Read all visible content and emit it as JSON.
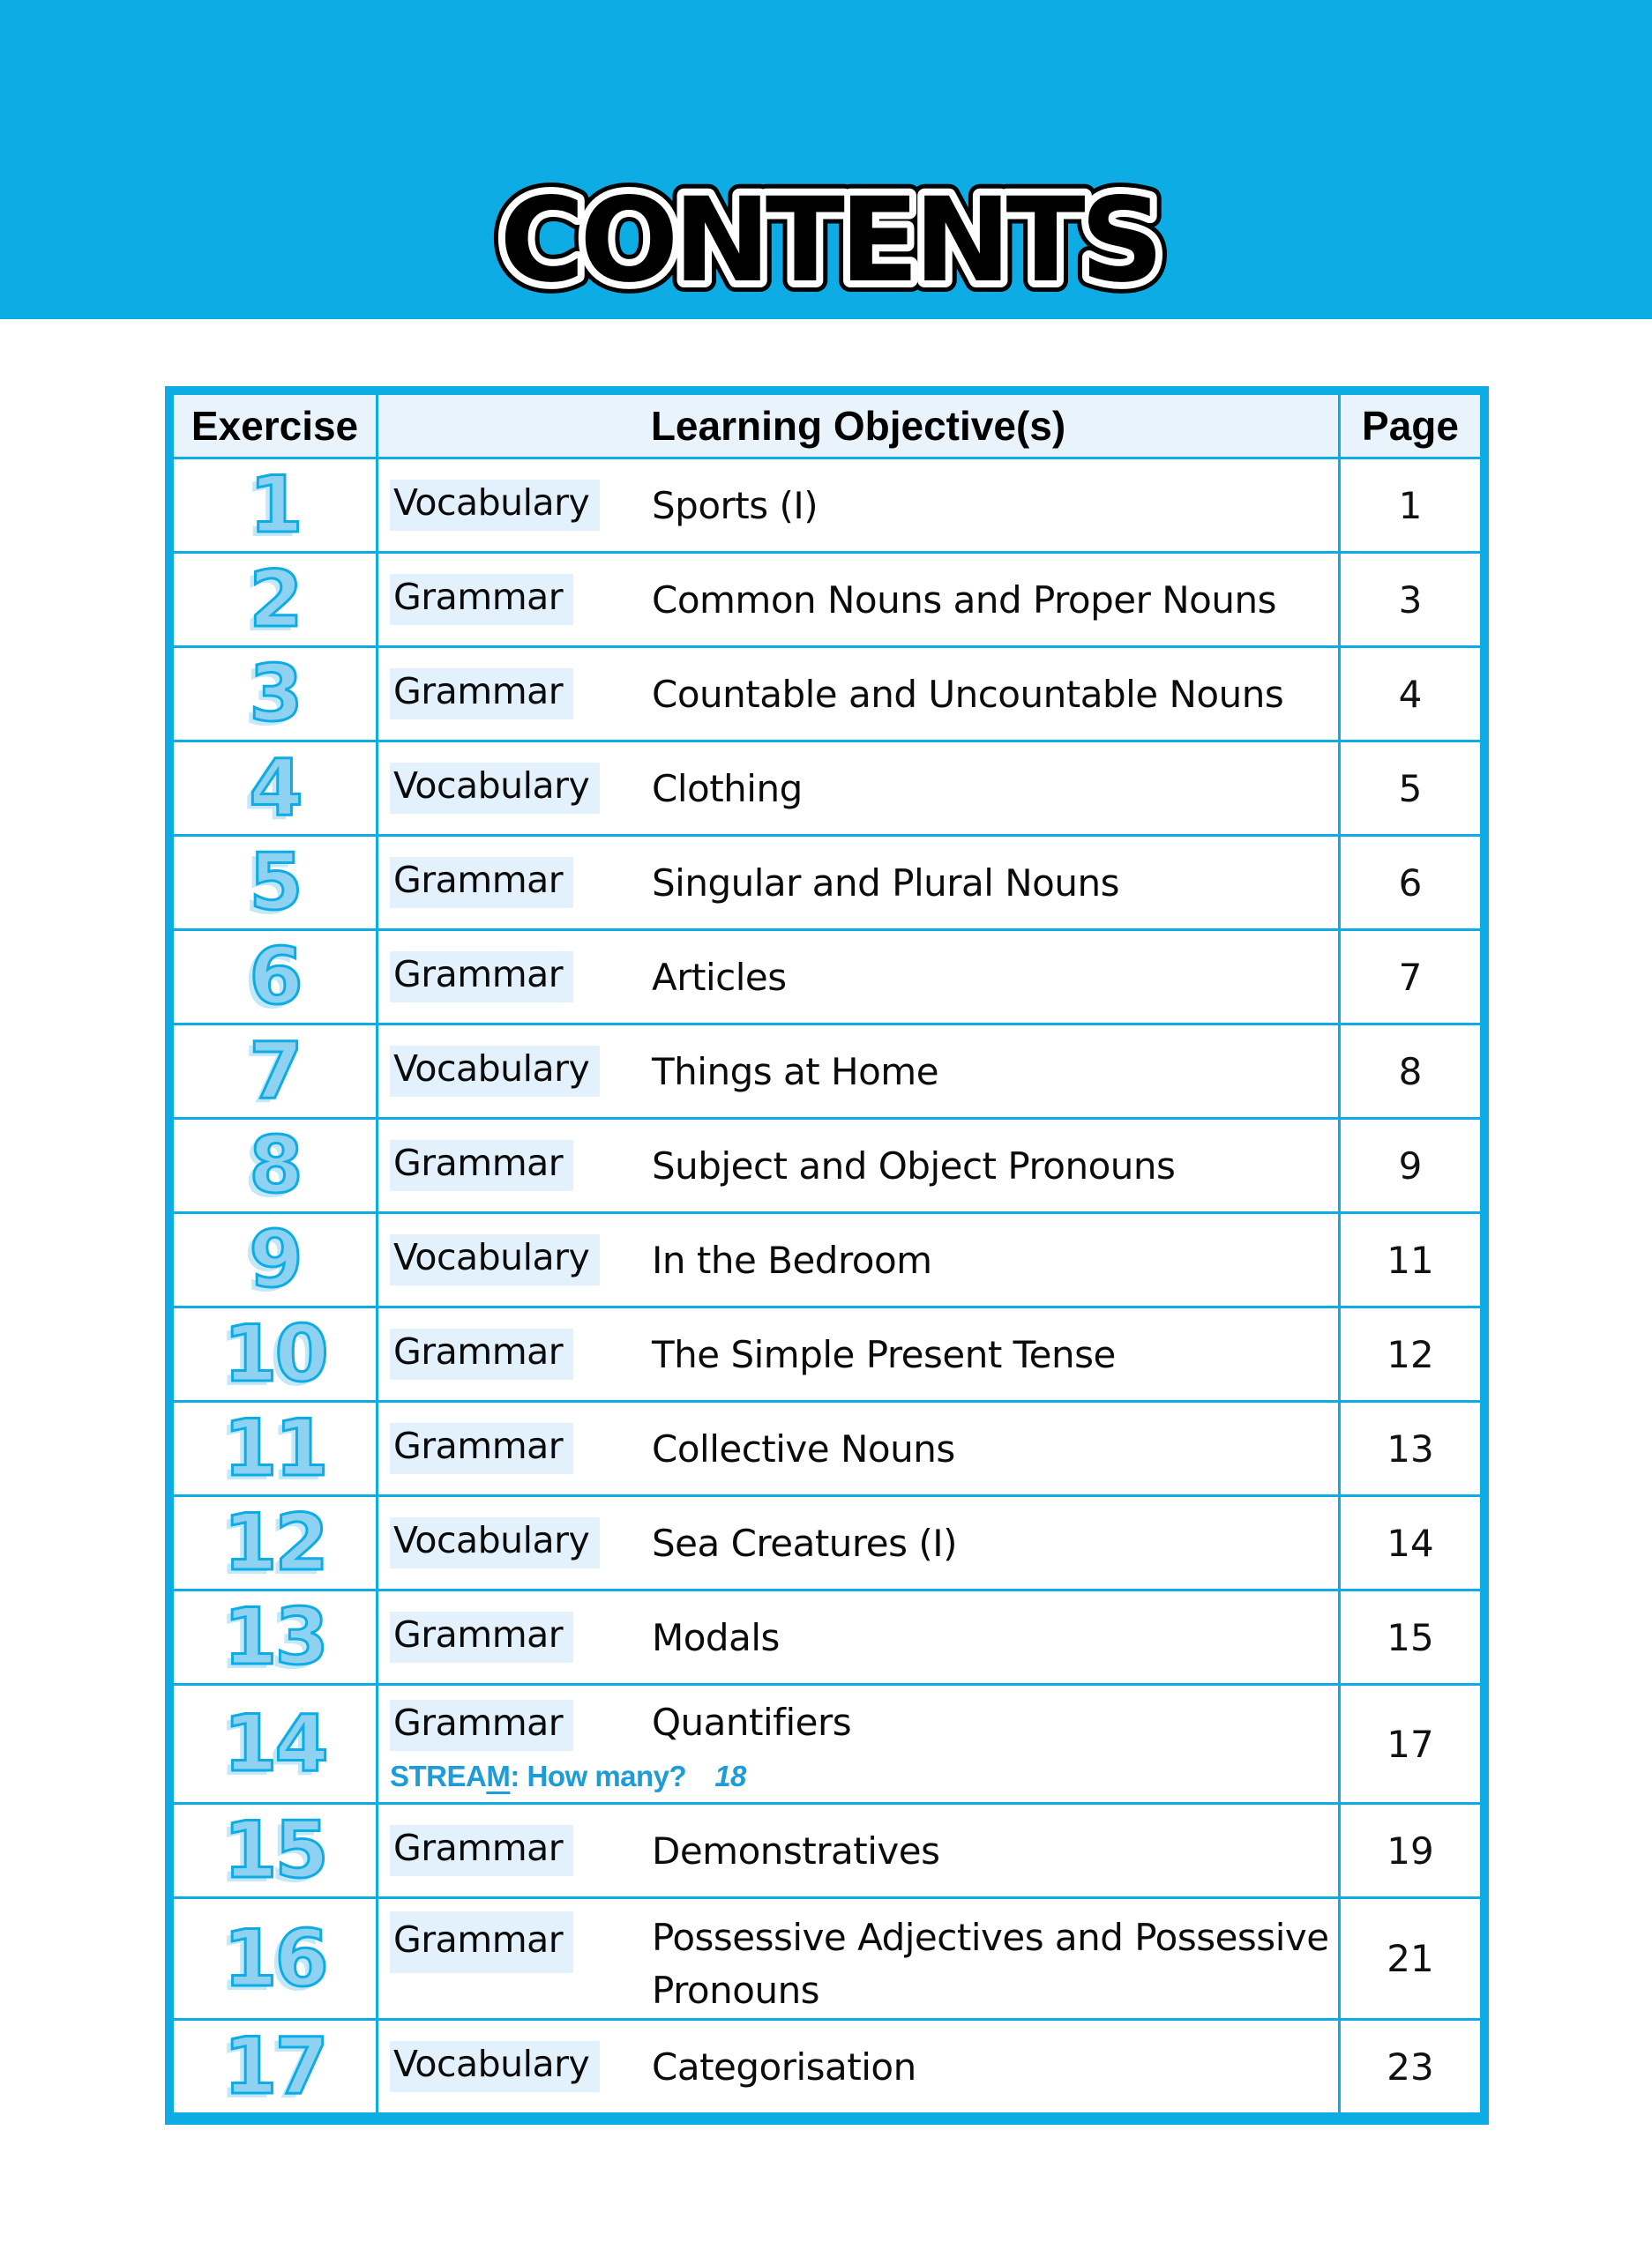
{
  "banner": {
    "title": "CONTENTS"
  },
  "table": {
    "headers": {
      "exercise": "Exercise",
      "objective": "Learning Objective(s)",
      "page": "Page"
    },
    "rows": [
      {
        "num": "1",
        "category": "Vocabulary",
        "objective": "Sports (I)",
        "page": "1"
      },
      {
        "num": "2",
        "category": "Grammar",
        "objective": "Common Nouns and Proper Nouns",
        "page": "3"
      },
      {
        "num": "3",
        "category": "Grammar",
        "objective": "Countable and Uncountable Nouns",
        "page": "4"
      },
      {
        "num": "4",
        "category": "Vocabulary",
        "objective": "Clothing",
        "page": "5"
      },
      {
        "num": "5",
        "category": "Grammar",
        "objective": "Singular and Plural Nouns",
        "page": "6"
      },
      {
        "num": "6",
        "category": "Grammar",
        "objective": "Articles",
        "page": "7"
      },
      {
        "num": "7",
        "category": "Vocabulary",
        "objective": "Things at Home",
        "page": "8"
      },
      {
        "num": "8",
        "category": "Grammar",
        "objective": "Subject and Object Pronouns",
        "page": "9"
      },
      {
        "num": "9",
        "category": "Vocabulary",
        "objective": "In the Bedroom",
        "page": "11"
      },
      {
        "num": "10",
        "category": "Grammar",
        "objective": "The Simple Present Tense",
        "page": "12"
      },
      {
        "num": "11",
        "category": "Grammar",
        "objective": "Collective Nouns",
        "page": "13"
      },
      {
        "num": "12",
        "category": "Vocabulary",
        "objective": "Sea Creatures (I)",
        "page": "14"
      },
      {
        "num": "13",
        "category": "Grammar",
        "objective": "Modals",
        "page": "15"
      },
      {
        "num": "14",
        "category": "Grammar",
        "objective": "Quantifiers",
        "page": "17",
        "sub": {
          "prefix": "STREA",
          "underlined": "M",
          "suffix": ": How many?",
          "page": "18"
        }
      },
      {
        "num": "15",
        "category": "Grammar",
        "objective": "Demonstratives",
        "page": "19"
      },
      {
        "num": "16",
        "category": "Grammar",
        "objective": "Possessive Adjectives and Possessive",
        "objective_line2": "Pronouns",
        "page": "21"
      },
      {
        "num": "17",
        "category": "Vocabulary",
        "objective": "Categorisation",
        "page": "23"
      }
    ]
  },
  "colors": {
    "accent": "#0DACE4",
    "header_bg": "#E9F3FB",
    "highlight": "#E3F1FC",
    "num_fill": "#8FD1F1",
    "stream": "#1E9CD8",
    "title_fill": "#000000",
    "title_outline": "#FFFFFF"
  }
}
